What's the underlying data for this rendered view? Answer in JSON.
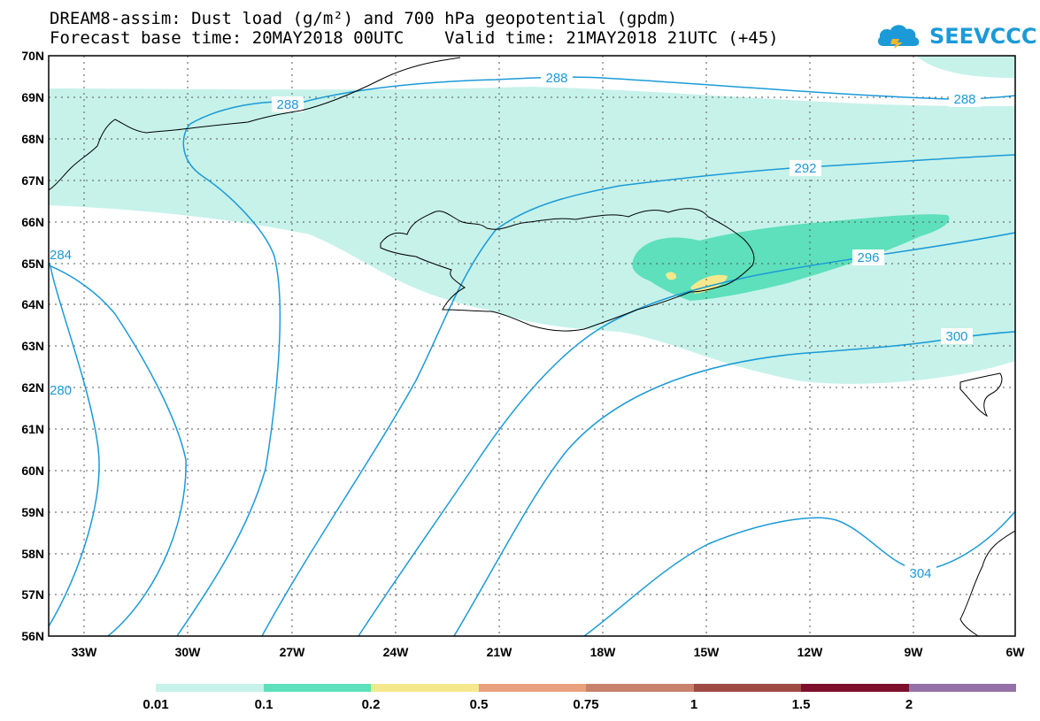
{
  "title": {
    "line1": "DREAM8-assim: Dust load (g/m²) and 700 hPa geopotential (gpdm)",
    "line2": "Forecast base time: 20MAY2018 00UTC    Valid time: 21MAY2018 21UTC (+45)"
  },
  "logo": {
    "text": "SEEVCCC",
    "color": "#1b9ad7"
  },
  "axes": {
    "lat_labels": [
      "70N",
      "69N",
      "68N",
      "67N",
      "66N",
      "65N",
      "64N",
      "63N",
      "62N",
      "61N",
      "60N",
      "59N",
      "58N",
      "57N",
      "56N"
    ],
    "lon_labels": [
      "33W",
      "30W",
      "27W",
      "24W",
      "21W",
      "18W",
      "15W",
      "12W",
      "9W",
      "6W"
    ]
  },
  "contour_labels": [
    {
      "text": "288"
    },
    {
      "text": "288"
    },
    {
      "text": "288"
    },
    {
      "text": "292"
    },
    {
      "text": "296"
    },
    {
      "text": "300"
    },
    {
      "text": "304"
    },
    {
      "text": "284"
    },
    {
      "text": "280"
    }
  ],
  "colorbar": {
    "colors": [
      "#c6f2ea",
      "#5de0bb",
      "#f5e88c",
      "#e8a17c",
      "#c8826c",
      "#9e4b43",
      "#7c0f2c",
      "#3d2a1a",
      "#9471a8"
    ],
    "labels": [
      "0.01",
      "0.1",
      "0.2",
      "0.5",
      "0.75",
      "1",
      "1.5",
      "2"
    ]
  },
  "colors": {
    "contour": "#1b9ad7",
    "coast": "#000000",
    "grid": "#555555"
  }
}
